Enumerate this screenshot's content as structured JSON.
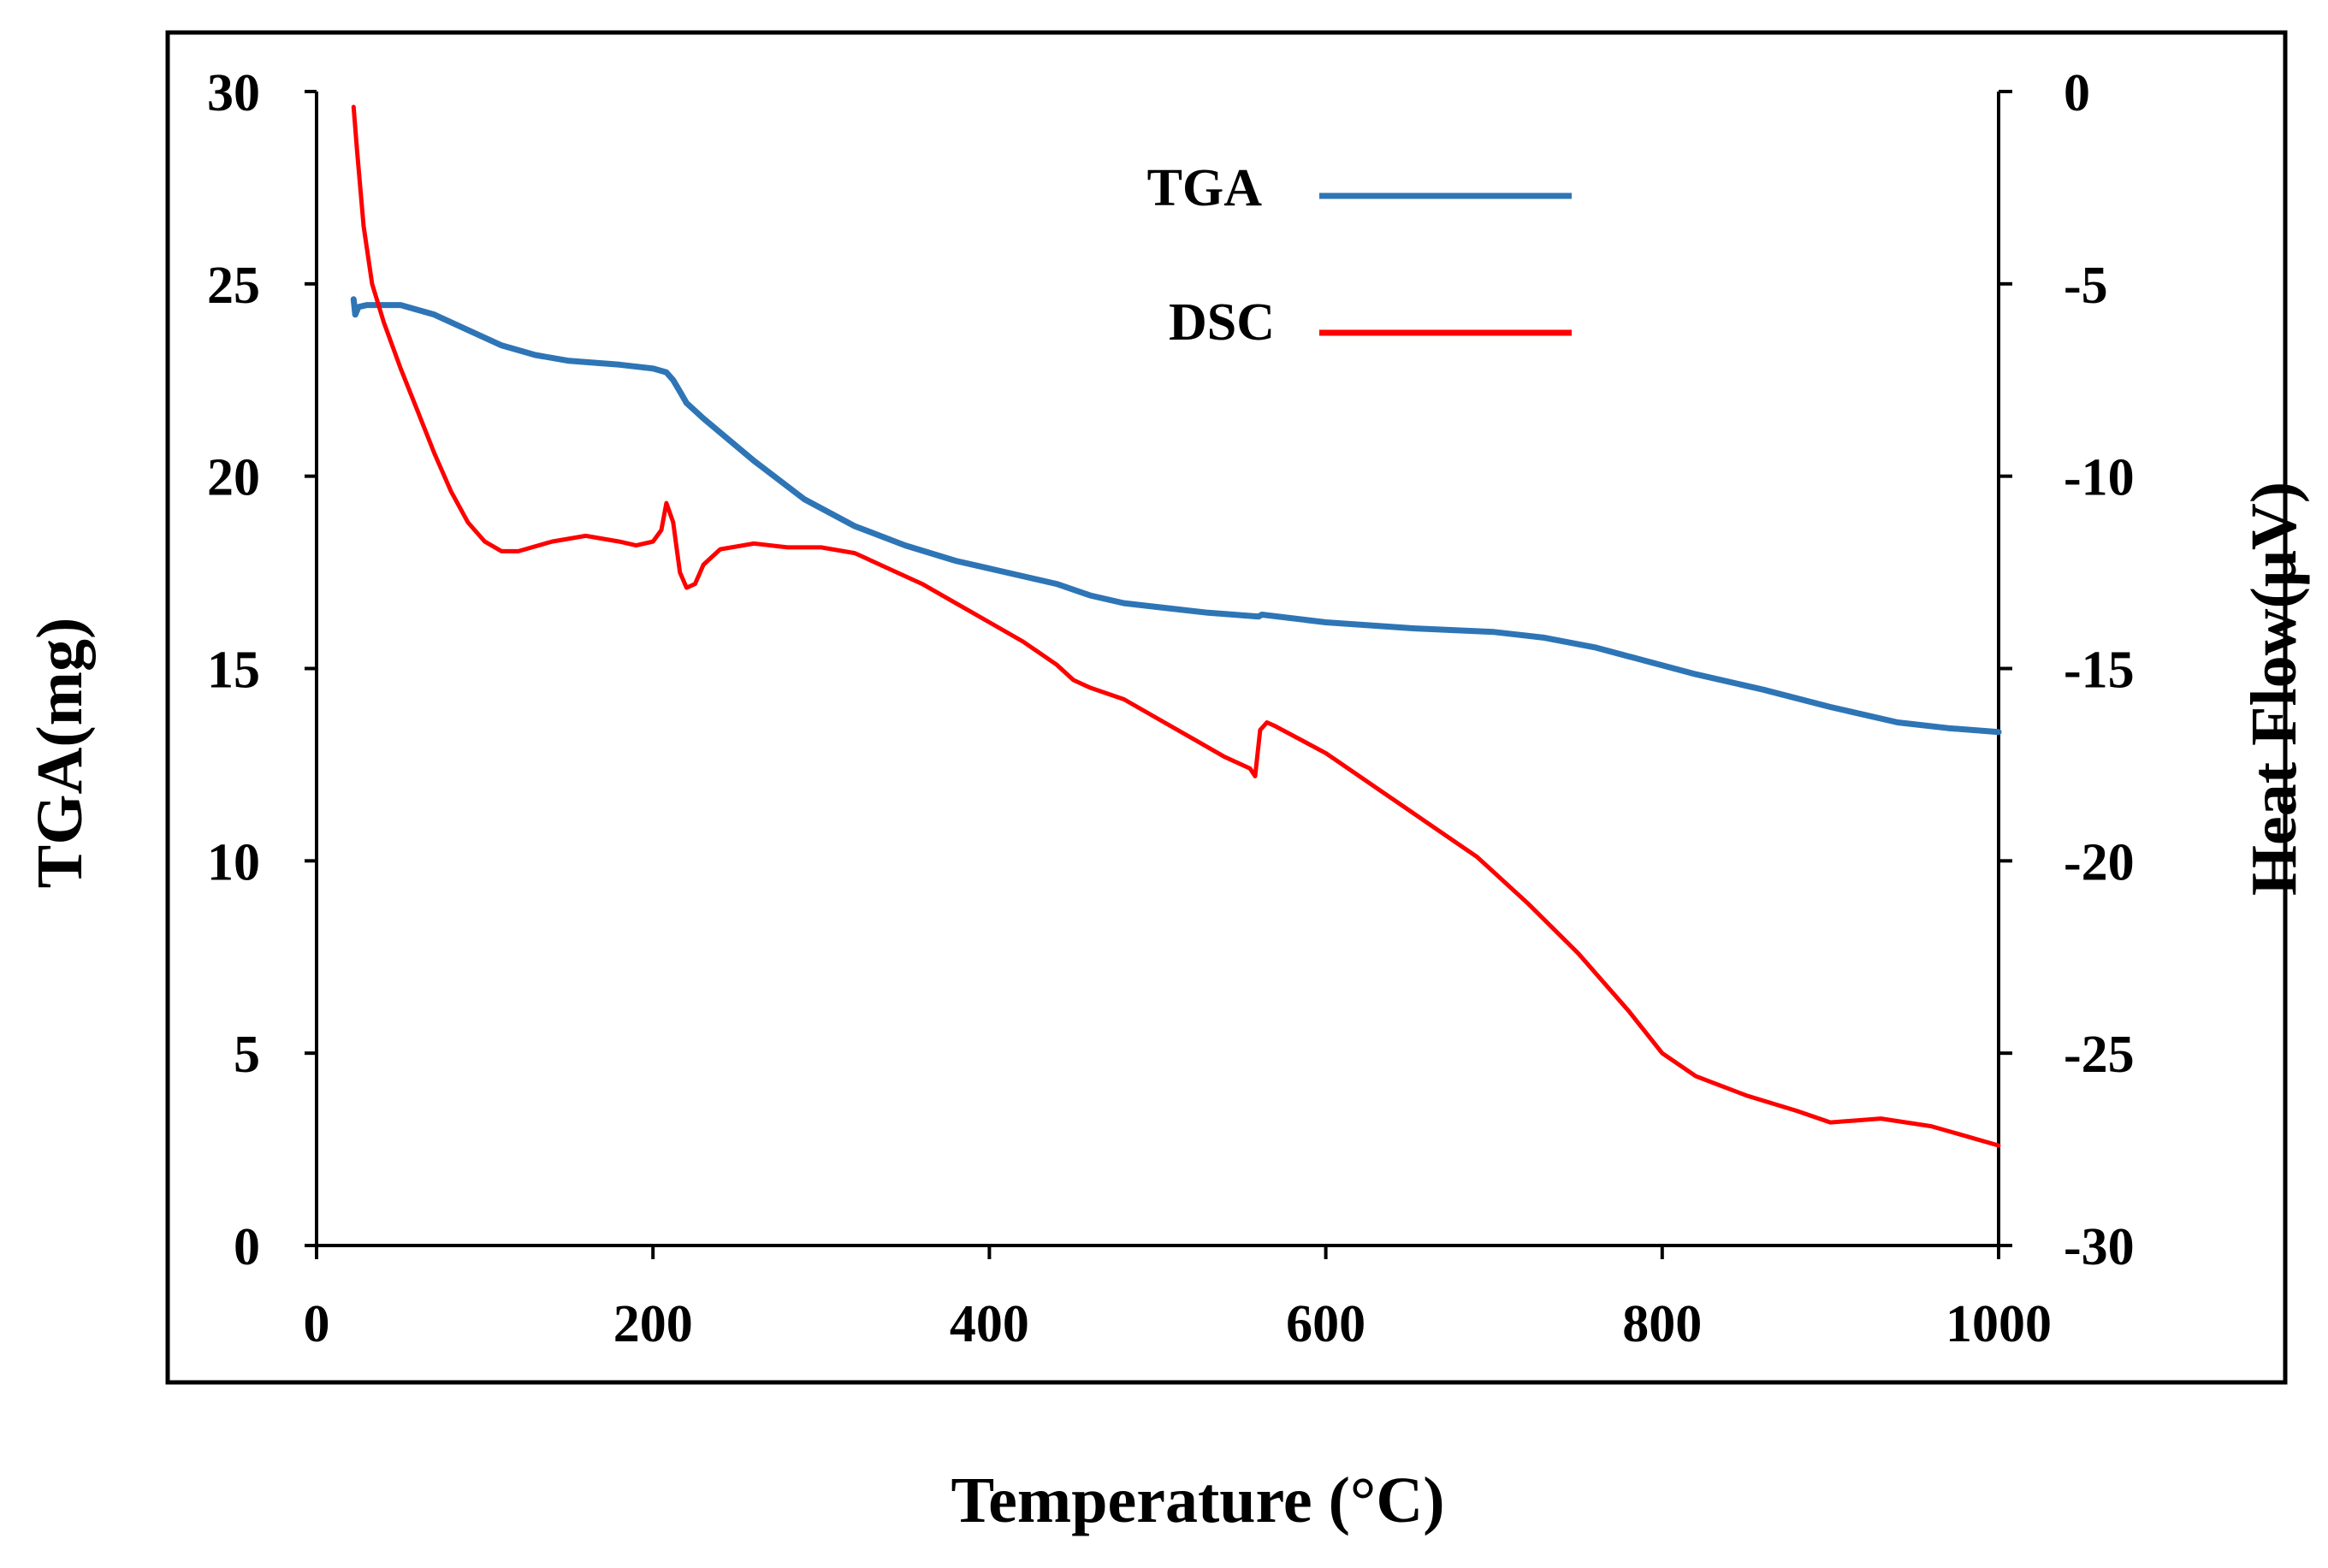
{
  "chart_data": {
    "type": "line",
    "xlabel": "Temperature (°C)",
    "ylabel_left": "TGA(mg)",
    "ylabel_right": "Heat Flow(μV)",
    "xlim": [
      0,
      1000
    ],
    "ylim_left": [
      0,
      30
    ],
    "ylim_right": [
      -30,
      0
    ],
    "x_ticks": [
      0,
      200,
      400,
      600,
      800,
      1000
    ],
    "x_tick_labels": [
      "0",
      "200",
      "400",
      "600",
      "800",
      "1000"
    ],
    "y_left_ticks": [
      0,
      5,
      10,
      15,
      20,
      25,
      30
    ],
    "y_left_tick_labels": [
      "0",
      "5",
      "10",
      "15",
      "20",
      "25",
      "30"
    ],
    "y_right_ticks": [
      0,
      -5,
      -10,
      -15,
      -20,
      -25,
      -30
    ],
    "y_right_tick_labels": [
      "0",
      "-5",
      "-10",
      "-15",
      "-20",
      "-25",
      "-30"
    ],
    "grid": false,
    "legend_position": "top-center",
    "series": [
      {
        "name": "TGA",
        "axis": "left",
        "color": "#2e75b6",
        "x": [
          22,
          23,
          25,
          30,
          50,
          70,
          90,
          110,
          130,
          150,
          180,
          200,
          208,
          212,
          216,
          220,
          230,
          260,
          290,
          320,
          350,
          380,
          410,
          440,
          460,
          480,
          500,
          530,
          560,
          562,
          600,
          650,
          700,
          730,
          760,
          790,
          820,
          860,
          900,
          940,
          970,
          1000
        ],
        "values": [
          24.6,
          24.2,
          24.4,
          24.45,
          24.45,
          24.2,
          23.8,
          23.4,
          23.15,
          23.0,
          22.9,
          22.8,
          22.7,
          22.5,
          22.2,
          21.9,
          21.5,
          20.4,
          19.4,
          18.7,
          18.2,
          17.8,
          17.5,
          17.2,
          16.9,
          16.7,
          16.6,
          16.45,
          16.35,
          16.4,
          16.2,
          16.05,
          15.95,
          15.8,
          15.55,
          15.2,
          14.85,
          14.45,
          14.0,
          13.6,
          13.45,
          13.35
        ]
      },
      {
        "name": "DSC",
        "axis": "right",
        "color": "#ff0000",
        "x": [
          22,
          24,
          28,
          33,
          40,
          50,
          60,
          70,
          80,
          90,
          100,
          110,
          120,
          140,
          160,
          180,
          190,
          200,
          205,
          208,
          212,
          216,
          220,
          225,
          230,
          240,
          260,
          280,
          300,
          320,
          340,
          360,
          380,
          400,
          420,
          440,
          450,
          460,
          480,
          500,
          520,
          540,
          555,
          558,
          561,
          565,
          570,
          600,
          630,
          660,
          690,
          720,
          750,
          780,
          800,
          820,
          850,
          880,
          900,
          930,
          960,
          1000
        ],
        "values": [
          -0.4,
          -1.5,
          -3.5,
          -5.0,
          -6.0,
          -7.2,
          -8.3,
          -9.4,
          -10.4,
          -11.2,
          -11.7,
          -11.95,
          -11.95,
          -11.7,
          -11.55,
          -11.7,
          -11.8,
          -11.7,
          -11.4,
          -10.7,
          -11.2,
          -12.5,
          -12.9,
          -12.8,
          -12.3,
          -11.9,
          -11.75,
          -11.85,
          -11.85,
          -12.0,
          -12.4,
          -12.8,
          -13.3,
          -13.8,
          -14.3,
          -14.9,
          -15.3,
          -15.5,
          -15.8,
          -16.3,
          -16.8,
          -17.3,
          -17.6,
          -17.8,
          -16.6,
          -16.4,
          -16.5,
          -17.2,
          -18.1,
          -19.0,
          -19.9,
          -21.1,
          -22.4,
          -23.9,
          -25.0,
          -25.6,
          -26.1,
          -26.5,
          -26.8,
          -26.7,
          -26.9,
          -27.4
        ]
      }
    ]
  }
}
